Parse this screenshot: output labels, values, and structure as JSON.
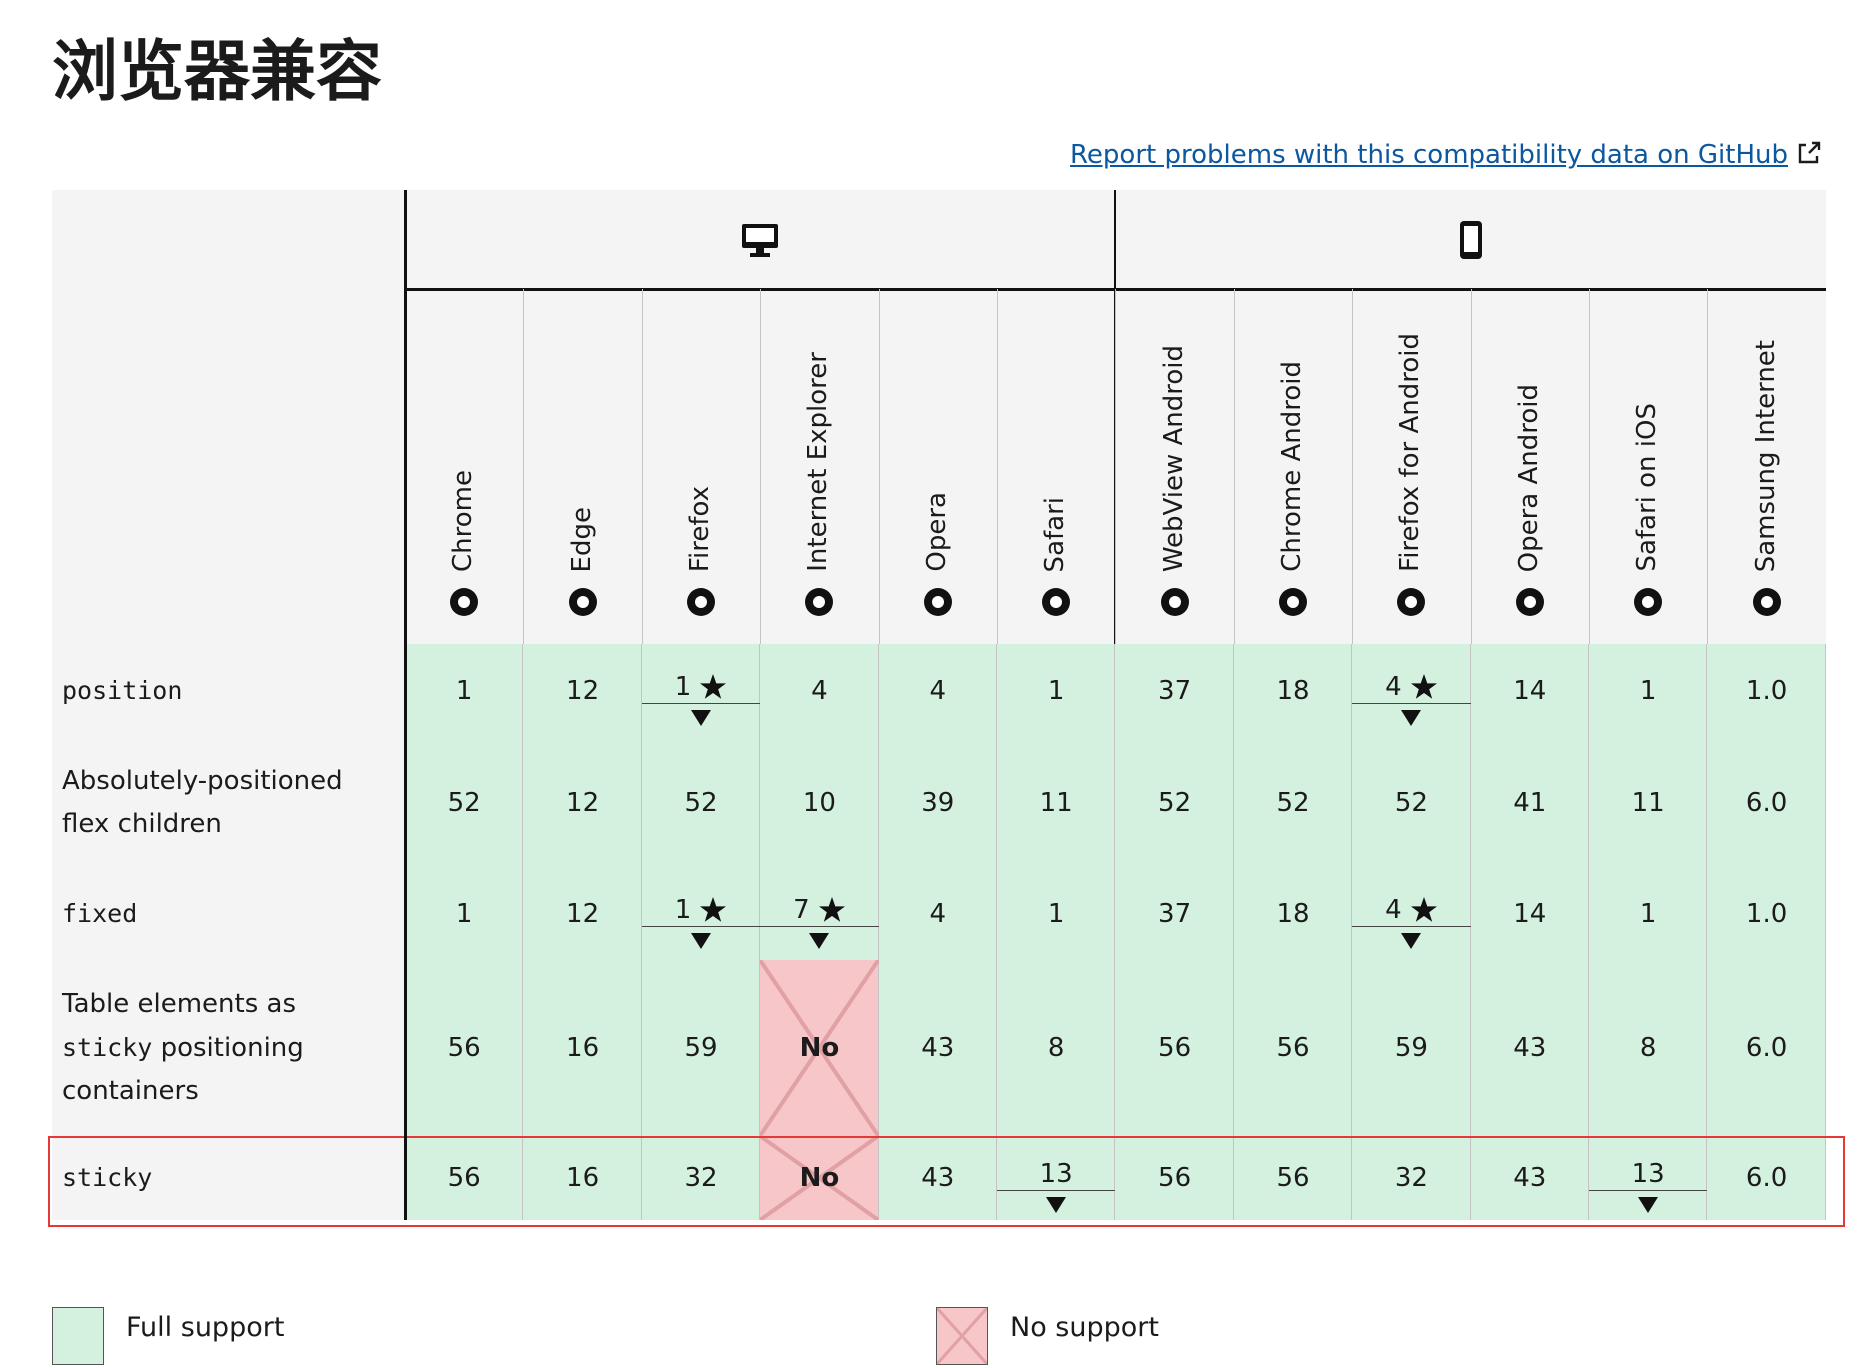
{
  "title": "浏览器兼容",
  "report_link": "Report problems with this compatibility data on GitHub",
  "browsers": [
    {
      "name": "Chrome",
      "platform": "desktop"
    },
    {
      "name": "Edge",
      "platform": "desktop"
    },
    {
      "name": "Firefox",
      "platform": "desktop"
    },
    {
      "name": "Internet Explorer",
      "platform": "desktop"
    },
    {
      "name": "Opera",
      "platform": "desktop"
    },
    {
      "name": "Safari",
      "platform": "desktop"
    },
    {
      "name": "WebView Android",
      "platform": "mobile"
    },
    {
      "name": "Chrome Android",
      "platform": "mobile"
    },
    {
      "name": "Firefox for Android",
      "platform": "mobile"
    },
    {
      "name": "Opera Android",
      "platform": "mobile"
    },
    {
      "name": "Safari on iOS",
      "platform": "mobile"
    },
    {
      "name": "Samsung Internet",
      "platform": "mobile"
    }
  ],
  "rows": [
    {
      "feature": [
        {
          "text": "position",
          "code": true
        }
      ],
      "cells": [
        {
          "text": "1"
        },
        {
          "text": "12"
        },
        {
          "text": "1",
          "note": true,
          "more": true
        },
        {
          "text": "4"
        },
        {
          "text": "4"
        },
        {
          "text": "1"
        },
        {
          "text": "37"
        },
        {
          "text": "18"
        },
        {
          "text": "4",
          "note": true,
          "more": true
        },
        {
          "text": "14"
        },
        {
          "text": "1"
        },
        {
          "text": "1.0"
        }
      ]
    },
    {
      "feature": [
        {
          "text": "Absolutely-positioned flex children",
          "code": false
        }
      ],
      "cells": [
        {
          "text": "52"
        },
        {
          "text": "12"
        },
        {
          "text": "52"
        },
        {
          "text": "10"
        },
        {
          "text": "39"
        },
        {
          "text": "11"
        },
        {
          "text": "52"
        },
        {
          "text": "52"
        },
        {
          "text": "52"
        },
        {
          "text": "41"
        },
        {
          "text": "11"
        },
        {
          "text": "6.0"
        }
      ]
    },
    {
      "feature": [
        {
          "text": "fixed",
          "code": true
        }
      ],
      "cells": [
        {
          "text": "1"
        },
        {
          "text": "12"
        },
        {
          "text": "1",
          "note": true,
          "more": true
        },
        {
          "text": "7",
          "note": true,
          "more": true
        },
        {
          "text": "4"
        },
        {
          "text": "1"
        },
        {
          "text": "37"
        },
        {
          "text": "18"
        },
        {
          "text": "4",
          "note": true,
          "more": true
        },
        {
          "text": "14"
        },
        {
          "text": "1"
        },
        {
          "text": "1.0"
        }
      ]
    },
    {
      "feature": [
        {
          "text": "Table elements as",
          "code": false
        },
        {
          "text": "sticky",
          "code": true
        },
        {
          "text": "positioning containers",
          "code": false
        }
      ],
      "cells": [
        {
          "text": "56"
        },
        {
          "text": "16"
        },
        {
          "text": "59"
        },
        {
          "text": "No",
          "support": "none"
        },
        {
          "text": "43"
        },
        {
          "text": "8"
        },
        {
          "text": "56"
        },
        {
          "text": "56"
        },
        {
          "text": "59"
        },
        {
          "text": "43"
        },
        {
          "text": "8"
        },
        {
          "text": "6.0"
        }
      ]
    },
    {
      "feature": [
        {
          "text": "sticky",
          "code": true
        }
      ],
      "highlighted": true,
      "cells": [
        {
          "text": "56"
        },
        {
          "text": "16"
        },
        {
          "text": "32"
        },
        {
          "text": "No",
          "support": "none"
        },
        {
          "text": "43"
        },
        {
          "text": "13",
          "more": true
        },
        {
          "text": "56"
        },
        {
          "text": "56"
        },
        {
          "text": "32"
        },
        {
          "text": "43"
        },
        {
          "text": "13",
          "more": true
        },
        {
          "text": "6.0"
        }
      ]
    }
  ],
  "legend": [
    {
      "label": "Full support",
      "support": "full"
    },
    {
      "label": "No support",
      "support": "none"
    }
  ]
}
